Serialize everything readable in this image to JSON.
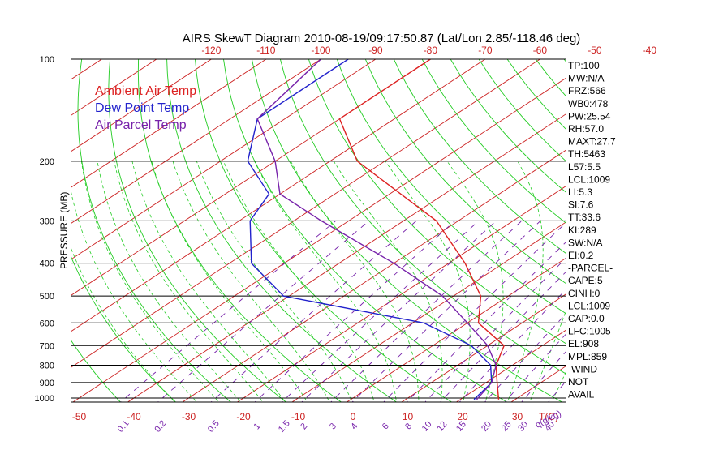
{
  "title": "AIRS SkewT Diagram 2010-08-19/09:17:50.87 (Lat/Lon 2.85/-118.46 deg)",
  "ylabel": "PRESSURE (MB)",
  "legend": [
    {
      "label": "Ambient Air Temp",
      "color": "#dd2222"
    },
    {
      "label": "Dew Point Temp",
      "color": "#2222cc"
    },
    {
      "label": "Air Parcel Temp",
      "color": "#7722aa"
    }
  ],
  "colors": {
    "isotherm": "#cc2222",
    "dry_adiabat": "#22cc22",
    "mixing_ratio": "#7722aa",
    "pressure_line": "#000000",
    "axis_text": "#cc2222",
    "mixing_text": "#7722aa"
  },
  "stats": [
    "TP:100",
    "MW:N/A",
    "FRZ:566",
    "WB0:478",
    "PW:25.54",
    "RH:57.0",
    "MAXT:27.7",
    "TH:5463",
    "L57:5.5",
    "LCL:1009",
    "LI:5.3",
    "SI:7.6",
    "TT:33.6",
    "KI:289",
    "SW:N/A",
    "EI:0.2",
    "-PARCEL-",
    "CAPE:5",
    "CINH:0",
    "LCL:1009",
    "CAP:0.0",
    "LFC:1005",
    "EL:908",
    "MPL:859",
    "-WIND-",
    "NOT",
    "AVAIL"
  ],
  "chart_data": {
    "type": "line",
    "title": "AIRS SkewT Diagram 2010-08-19/09:17:50.87 (Lat/Lon 2.85/-118.46 deg)",
    "ylabel": "PRESSURE (MB)",
    "xlabel": "T(C)",
    "pressure_levels": [
      100,
      200,
      300,
      400,
      500,
      600,
      700,
      800,
      900,
      1000
    ],
    "pressure_tick_labels": [
      "100",
      "200",
      "300",
      "400",
      "500",
      "600",
      "700",
      "800",
      "900",
      "1000"
    ],
    "top_temp_ticks": [
      -120,
      -110,
      -100,
      -90,
      -80,
      -70,
      -60,
      -50,
      -40
    ],
    "bottom_temp_ticks": [
      -50,
      -40,
      -30,
      -20,
      -10,
      0,
      10,
      20,
      30
    ],
    "bottom_temp_tick_labels": [
      "-50",
      "-40",
      "-30",
      "-20",
      "-10",
      "0",
      "10",
      "20",
      "30"
    ],
    "mixing_ratio_labels": [
      "0.1",
      "0.2",
      "0.5",
      "1",
      "1.5",
      "2",
      "3",
      "4",
      "6",
      "8",
      "10",
      "12",
      "15",
      "20",
      "25",
      "30",
      "40"
    ],
    "mixing_ratio_values": [
      0.1,
      0.2,
      0.5,
      1,
      1.5,
      2,
      3,
      4,
      6,
      8,
      10,
      12,
      15,
      20,
      25,
      30,
      40
    ],
    "mixing_ratio_unit": "q(g/kg)",
    "series": [
      {
        "name": "Ambient Air Temp",
        "color": "#dd2222",
        "points": [
          [
            100,
            -80
          ],
          [
            150,
            -80
          ],
          [
            200,
            -65
          ],
          [
            300,
            -34
          ],
          [
            400,
            -17
          ],
          [
            500,
            -5
          ],
          [
            600,
            2
          ],
          [
            700,
            13
          ],
          [
            800,
            17
          ],
          [
            900,
            22
          ],
          [
            1010,
            27
          ]
        ]
      },
      {
        "name": "Dew Point Temp",
        "color": "#2222cc",
        "points": [
          [
            100,
            -95
          ],
          [
            150,
            -95
          ],
          [
            200,
            -85
          ],
          [
            250,
            -72
          ],
          [
            300,
            -68
          ],
          [
            400,
            -56
          ],
          [
            500,
            -41
          ],
          [
            600,
            -8
          ],
          [
            700,
            7
          ],
          [
            800,
            16
          ],
          [
            900,
            21
          ],
          [
            1010,
            22.5
          ]
        ]
      },
      {
        "name": "Air Parcel Temp",
        "color": "#7722aa",
        "points": [
          [
            100,
            -100
          ],
          [
            150,
            -95
          ],
          [
            200,
            -80
          ],
          [
            250,
            -70
          ],
          [
            300,
            -55
          ],
          [
            400,
            -30
          ],
          [
            500,
            -12
          ],
          [
            600,
            0
          ],
          [
            700,
            10
          ],
          [
            800,
            17
          ],
          [
            900,
            21
          ],
          [
            1010,
            23
          ]
        ]
      }
    ]
  }
}
